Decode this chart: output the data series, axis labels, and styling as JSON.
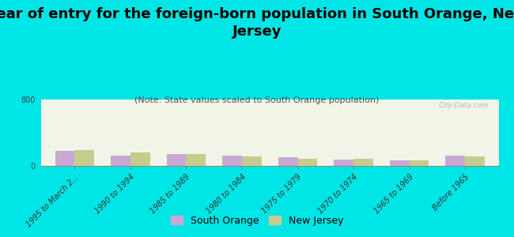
{
  "title": "Year of entry for the foreign-born population in South Orange, New\nJersey",
  "subtitle": "(Note: State values scaled to South Orange population)",
  "categories": [
    "1995 to March 2...",
    "1990 to 1994",
    "1985 to 1989",
    "1980 to 1984",
    "1975 to 1979",
    "1970 to 1974",
    "1965 to 1969",
    "Before 1965"
  ],
  "south_orange": [
    180,
    120,
    145,
    125,
    105,
    80,
    65,
    125
  ],
  "new_jersey": [
    195,
    160,
    140,
    115,
    85,
    85,
    62,
    118
  ],
  "so_color": "#c9a8d4",
  "nj_color": "#c5cc8e",
  "background_color": "#00e5e5",
  "plot_bg_color": "#f0f5e8",
  "ylim": [
    0,
    800
  ],
  "yticks": [
    0,
    800
  ],
  "bar_width": 0.35,
  "title_fontsize": 13,
  "subtitle_fontsize": 8,
  "tick_fontsize": 7,
  "legend_fontsize": 9,
  "watermark": "City-Data.com"
}
